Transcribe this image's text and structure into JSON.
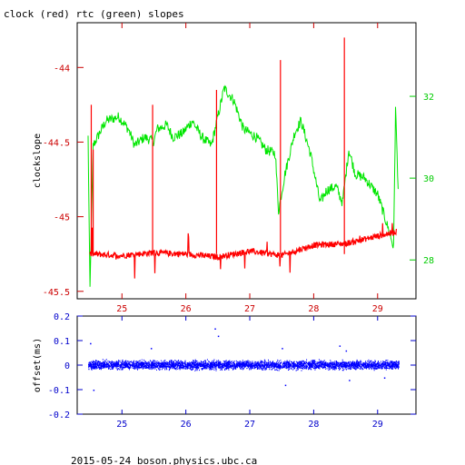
{
  "title": "clock (red) rtc (green) slopes",
  "footer": "2015-05-24 boson.physics.ubc.ca",
  "colors": {
    "clock": "#ff0000",
    "rtc": "#00e600",
    "offset": "#0000ff",
    "axis_red": "#cc0000",
    "axis_green": "#00cc00",
    "axis_blue": "#0000cc"
  },
  "chart_data": [
    {
      "type": "line",
      "title": "clock (red) rtc (green) slopes",
      "ylabel": "clockslope",
      "x_ticks": [
        "25",
        "26",
        "27",
        "28",
        "29"
      ],
      "xlim": [
        24.3,
        29.6
      ],
      "left_axis": {
        "ticks": [
          "-44",
          "-44.5",
          "-45",
          "-45.5"
        ],
        "ylim": [
          -45.55,
          -43.7
        ]
      },
      "right_axis": {
        "ticks": [
          "28",
          "30",
          "32"
        ],
        "ylim": [
          27.05,
          33.8
        ]
      },
      "series": [
        {
          "name": "clock",
          "axis": "left",
          "baseline": [
            [
              24.5,
              -45.25
            ],
            [
              25.0,
              -45.26
            ],
            [
              25.5,
              -45.24
            ],
            [
              26.0,
              -45.25
            ],
            [
              26.5,
              -45.27
            ],
            [
              27.0,
              -45.23
            ],
            [
              27.5,
              -45.26
            ],
            [
              28.0,
              -45.19
            ],
            [
              28.5,
              -45.18
            ],
            [
              29.0,
              -45.13
            ],
            [
              29.3,
              -45.1
            ]
          ],
          "spikes": [
            [
              24.52,
              -44.25
            ],
            [
              24.55,
              -44.55
            ],
            [
              25.48,
              -44.25
            ],
            [
              26.48,
              -44.15
            ],
            [
              27.48,
              -43.95
            ],
            [
              28.48,
              -43.8
            ]
          ]
        },
        {
          "name": "rtc",
          "axis": "right",
          "values": [
            [
              24.47,
              31.0
            ],
            [
              24.5,
              27.3
            ],
            [
              24.55,
              30.8
            ],
            [
              24.75,
              31.4
            ],
            [
              24.95,
              31.5
            ],
            [
              25.1,
              31.2
            ],
            [
              25.2,
              30.8
            ],
            [
              25.35,
              31.0
            ],
            [
              25.5,
              30.9
            ],
            [
              25.55,
              31.2
            ],
            [
              25.7,
              31.3
            ],
            [
              25.8,
              31.0
            ],
            [
              25.95,
              31.1
            ],
            [
              26.1,
              31.4
            ],
            [
              26.25,
              31.0
            ],
            [
              26.4,
              30.8
            ],
            [
              26.5,
              31.5
            ],
            [
              26.6,
              32.2
            ],
            [
              26.75,
              31.9
            ],
            [
              26.9,
              31.2
            ],
            [
              27.1,
              31.0
            ],
            [
              27.25,
              30.7
            ],
            [
              27.4,
              30.6
            ],
            [
              27.45,
              29.2
            ],
            [
              27.55,
              30.1
            ],
            [
              27.7,
              31.1
            ],
            [
              27.8,
              31.4
            ],
            [
              27.95,
              30.6
            ],
            [
              28.1,
              29.4
            ],
            [
              28.2,
              29.7
            ],
            [
              28.35,
              29.8
            ],
            [
              28.45,
              29.4
            ],
            [
              28.55,
              30.7
            ],
            [
              28.65,
              30.1
            ],
            [
              28.8,
              30.0
            ],
            [
              29.0,
              29.6
            ],
            [
              29.2,
              28.6
            ],
            [
              29.25,
              28.3
            ],
            [
              29.28,
              31.7
            ],
            [
              29.33,
              29.4
            ]
          ]
        }
      ]
    },
    {
      "type": "scatter",
      "ylabel": "offset(ms)",
      "x_ticks": [
        "25",
        "26",
        "27",
        "28",
        "29"
      ],
      "y_ticks": [
        "0.2",
        "0.1",
        "0",
        "-0.1",
        "-0.2"
      ],
      "xlim": [
        24.3,
        29.6
      ],
      "ylim": [
        -0.2,
        0.2
      ],
      "band": {
        "x": [
          24.47,
          29.33
        ],
        "half_width": 0.025
      },
      "outliers": [
        [
          24.5,
          0.09
        ],
        [
          24.55,
          -0.1
        ],
        [
          25.45,
          0.07
        ],
        [
          26.45,
          0.15
        ],
        [
          26.5,
          0.12
        ],
        [
          27.5,
          0.07
        ],
        [
          27.55,
          -0.08
        ],
        [
          28.4,
          0.08
        ],
        [
          28.5,
          0.06
        ],
        [
          28.55,
          -0.06
        ],
        [
          29.1,
          -0.05
        ]
      ]
    }
  ]
}
